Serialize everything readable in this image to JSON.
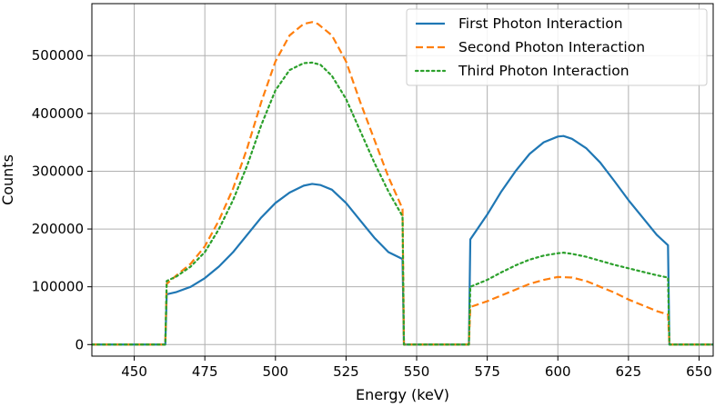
{
  "chart_data": {
    "type": "line",
    "xlabel": "Energy (keV)",
    "ylabel": "Counts",
    "xlim": [
      435,
      655
    ],
    "ylim": [
      -20000,
      590000
    ],
    "xticks": [
      450,
      475,
      500,
      525,
      550,
      575,
      600,
      625,
      650
    ],
    "yticks": [
      0,
      100000,
      200000,
      300000,
      400000,
      500000
    ],
    "grid": true,
    "legend": {
      "placement": "top-right"
    },
    "series": [
      {
        "name": "First Photon Interaction",
        "color": "#1f77b4",
        "style": "solid",
        "x": [
          435,
          461,
          461.5,
          465,
          470,
          475,
          480,
          485,
          490,
          495,
          500,
          505,
          510,
          513,
          516,
          520,
          525,
          530,
          535,
          540,
          545,
          545.5,
          550,
          555,
          560,
          565,
          568.5,
          569,
          575,
          580,
          585,
          590,
          595,
          600,
          602,
          605,
          610,
          615,
          620,
          625,
          630,
          635,
          639,
          639.5,
          645,
          655
        ],
        "y": [
          0,
          0,
          87000,
          91000,
          100000,
          115000,
          135000,
          160000,
          190000,
          220000,
          245000,
          263000,
          275000,
          278000,
          276000,
          268000,
          245000,
          215000,
          185000,
          160000,
          148000,
          0,
          0,
          0,
          0,
          0,
          0,
          182000,
          225000,
          265000,
          300000,
          330000,
          350000,
          360000,
          361000,
          356000,
          340000,
          315000,
          283000,
          250000,
          220000,
          190000,
          172000,
          0,
          0,
          0
        ]
      },
      {
        "name": "Second Photon Interaction",
        "color": "#ff7f0e",
        "style": "dashed",
        "x": [
          435,
          461,
          461.5,
          465,
          470,
          475,
          480,
          485,
          490,
          495,
          500,
          505,
          510,
          513,
          515,
          520,
          525,
          530,
          535,
          540,
          545,
          545.5,
          550,
          555,
          560,
          565,
          568.5,
          569,
          575,
          580,
          585,
          590,
          595,
          600,
          605,
          610,
          615,
          620,
          625,
          630,
          635,
          639,
          639.5,
          645,
          655
        ],
        "y": [
          0,
          0,
          105000,
          120000,
          140000,
          170000,
          215000,
          270000,
          340000,
          420000,
          490000,
          535000,
          555000,
          558000,
          555000,
          535000,
          490000,
          420000,
          355000,
          290000,
          235000,
          0,
          0,
          0,
          0,
          0,
          0,
          65000,
          75000,
          85000,
          95000,
          105000,
          112000,
          117000,
          116000,
          110000,
          100000,
          90000,
          78000,
          68000,
          58000,
          52000,
          0,
          0,
          0
        ]
      },
      {
        "name": "Third Photon Interaction",
        "color": "#2ca02c",
        "style": "dotted",
        "x": [
          435,
          461,
          461.5,
          465,
          470,
          475,
          480,
          485,
          490,
          495,
          500,
          505,
          510,
          513,
          516,
          520,
          525,
          530,
          535,
          540,
          545,
          545.5,
          550,
          555,
          560,
          565,
          568.5,
          569,
          575,
          580,
          585,
          590,
          595,
          600,
          602,
          605,
          610,
          615,
          620,
          625,
          630,
          635,
          639,
          639.5,
          645,
          655
        ],
        "y": [
          0,
          0,
          110000,
          118000,
          135000,
          160000,
          200000,
          250000,
          310000,
          380000,
          440000,
          475000,
          487000,
          488000,
          484000,
          465000,
          425000,
          370000,
          315000,
          265000,
          222000,
          0,
          0,
          0,
          0,
          0,
          0,
          100000,
          112000,
          125000,
          137000,
          147000,
          154000,
          158000,
          159000,
          157000,
          152000,
          145000,
          138000,
          132000,
          126000,
          120000,
          116000,
          0,
          0,
          0
        ]
      }
    ]
  }
}
